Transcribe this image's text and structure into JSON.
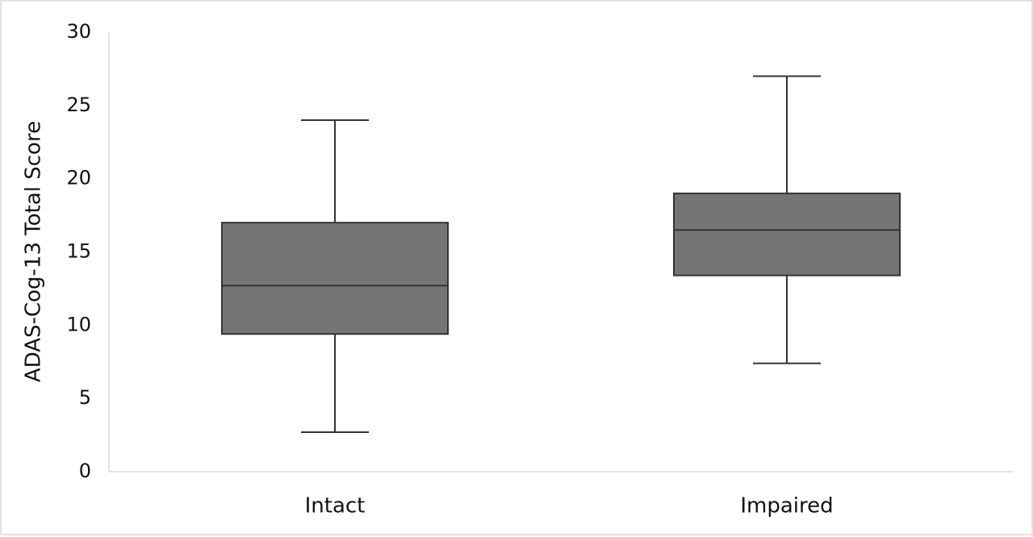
{
  "chart_data": {
    "type": "box",
    "ylabel": "ADAS-Cog-13 Total Score",
    "categories": [
      "Intact",
      "Impaired"
    ],
    "boxes": [
      {
        "min": 2.7,
        "q1": 9.4,
        "median": 12.7,
        "q3": 17,
        "max": 24
      },
      {
        "min": 7.4,
        "q1": 13.4,
        "median": 16.5,
        "q3": 19,
        "max": 27
      }
    ],
    "color": "#757575",
    "ylim": [
      0,
      30
    ],
    "yticks": [
      0,
      5,
      10,
      15,
      20,
      25,
      30
    ],
    "grid": false
  }
}
